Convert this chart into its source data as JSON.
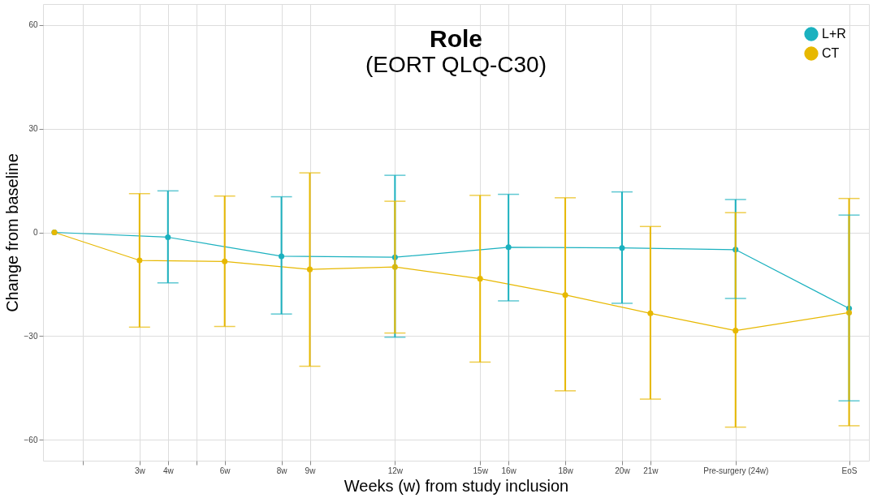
{
  "chart_data": {
    "type": "line",
    "title": "Role",
    "subtitle": "(EORT QLQ-C30)",
    "xlabel": "Weeks (w) from study inclusion",
    "ylabel": "Change from baseline",
    "xlim": [
      -0.4,
      28.7
    ],
    "ylim": [
      -66,
      66
    ],
    "xticks": [
      {
        "value": 1,
        "label": null
      },
      {
        "value": 3,
        "label": "3w"
      },
      {
        "value": 4,
        "label": "4w"
      },
      {
        "value": 5,
        "label": null
      },
      {
        "value": 6,
        "label": "6w"
      },
      {
        "value": 8,
        "label": "8w"
      },
      {
        "value": 9,
        "label": "9w"
      },
      {
        "value": 12,
        "label": "12w"
      },
      {
        "value": 15,
        "label": "15w"
      },
      {
        "value": 16,
        "label": "16w"
      },
      {
        "value": 18,
        "label": "18w"
      },
      {
        "value": 20,
        "label": "20w"
      },
      {
        "value": 21,
        "label": "21w"
      },
      {
        "value": 24,
        "label": "Pre-surgery (24w)"
      },
      {
        "value": 28,
        "label": "EoS"
      }
    ],
    "yticks": [
      -60,
      -30,
      0,
      30,
      60
    ],
    "grid": true,
    "legend": "top right",
    "marker": "circle",
    "series": [
      {
        "name": "L+R",
        "color": "#1bb1bf",
        "x": [
          0,
          4,
          8,
          12,
          16,
          20,
          24,
          28
        ],
        "values": [
          0,
          -1.4,
          -6.9,
          -7.2,
          -4.3,
          -4.5,
          -5,
          -22
        ],
        "errors": [
          null,
          [
            -14.6,
            12
          ],
          [
            -23.6,
            10.3
          ],
          [
            -30.3,
            16.5
          ],
          [
            -19.8,
            11
          ],
          [
            -20.5,
            11.7
          ],
          [
            -19.1,
            9.5
          ],
          [
            -48.7,
            5
          ]
        ]
      },
      {
        "name": "CT",
        "color": "#e7b800",
        "x": [
          0,
          3,
          6,
          9,
          12,
          15,
          18,
          21,
          24,
          28
        ],
        "values": [
          0,
          -8.1,
          -8.4,
          -10.7,
          -10,
          -13.4,
          -18.1,
          -23.4,
          -28.4,
          -23.2
        ],
        "errors": [
          null,
          [
            -27.4,
            11.2
          ],
          [
            -27.2,
            10.5
          ],
          [
            -38.7,
            17.2
          ],
          [
            -29.1,
            9
          ],
          [
            -37.5,
            10.7
          ],
          [
            -45.8,
            10
          ],
          [
            -48.2,
            1.7
          ],
          [
            -56.3,
            5.7
          ],
          [
            -55.9,
            9.8
          ]
        ]
      }
    ]
  }
}
